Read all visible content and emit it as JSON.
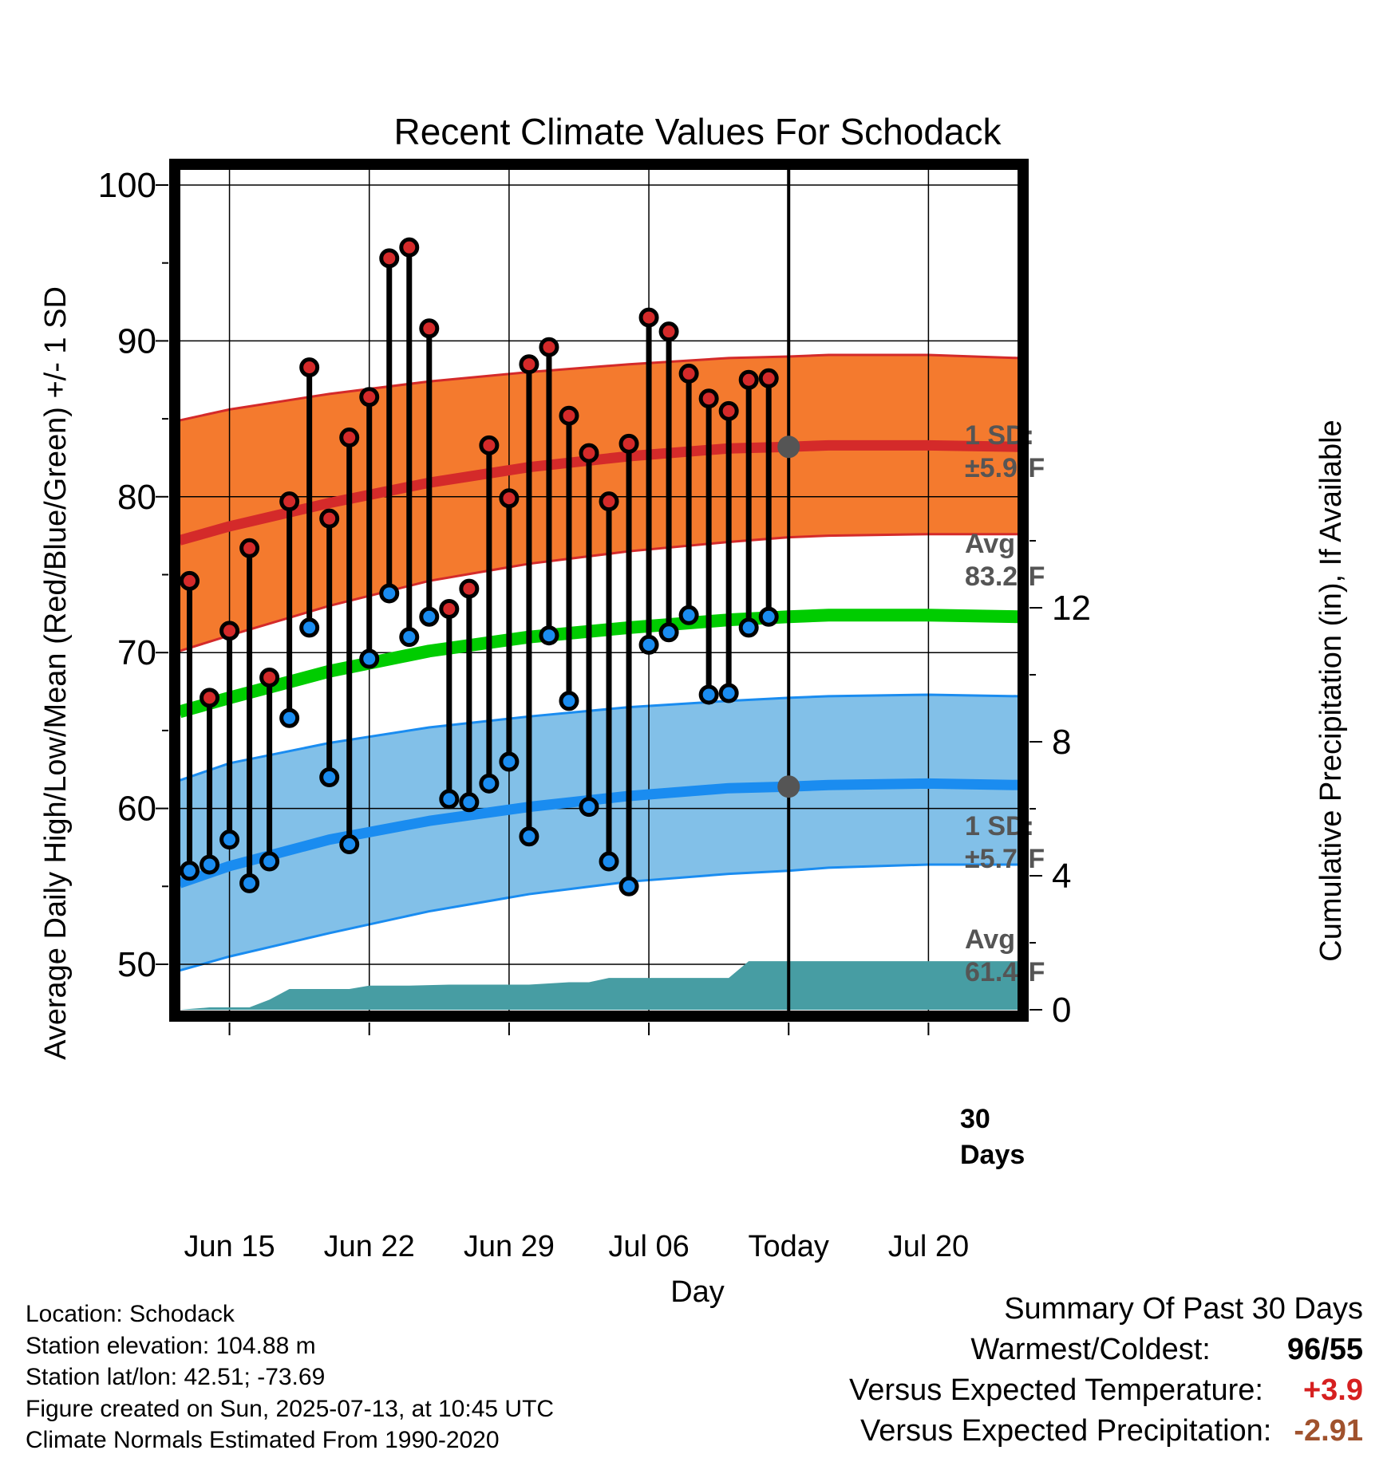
{
  "title": "Recent Climate Values For Schodack",
  "chart_data": {
    "type": "line",
    "title": "Recent Climate Values For Schodack",
    "xlabel": "Day",
    "ylabel": "Average Daily High/Low/Mean (Red/Blue/Green) +/- 1 SD",
    "ylabel_right": "Cumulative Precipitation (in), If Available",
    "ylim": [
      47,
      101
    ],
    "ylim_right": [
      0,
      36
    ],
    "x_range": [
      12.5,
      54.5
    ],
    "yticks": [
      50,
      60,
      70,
      80,
      90,
      100
    ],
    "yticks_right": [
      0,
      4,
      8,
      12
    ],
    "xticks": [
      {
        "day": 15,
        "label": "Jun 15"
      },
      {
        "day": 22,
        "label": "Jun 22"
      },
      {
        "day": 29,
        "label": "Jun 29"
      },
      {
        "day": 36,
        "label": "Jul 06"
      },
      {
        "day": 43,
        "label": "Today"
      },
      {
        "day": 50,
        "label": "Jul 20"
      }
    ],
    "today_day": 43,
    "days": [
      13,
      14,
      15,
      16,
      17,
      18,
      19,
      20,
      21,
      22,
      23,
      24,
      25,
      26,
      27,
      28,
      29,
      30,
      31,
      32,
      33,
      34,
      35,
      36,
      37,
      38,
      39,
      40,
      41,
      42
    ],
    "highs": [
      74.6,
      67.1,
      71.4,
      76.7,
      68.4,
      79.7,
      88.3,
      78.6,
      83.8,
      86.4,
      95.3,
      96.0,
      90.8,
      72.8,
      74.1,
      83.3,
      79.9,
      88.5,
      89.6,
      85.2,
      82.8,
      79.7,
      83.4,
      91.5,
      90.6,
      87.9,
      86.3,
      85.5,
      87.5,
      87.6
    ],
    "lows": [
      56.0,
      56.4,
      58.0,
      55.2,
      56.6,
      65.8,
      71.6,
      62.0,
      57.7,
      69.6,
      73.8,
      71.0,
      72.3,
      60.6,
      60.4,
      61.6,
      63.0,
      58.2,
      71.1,
      66.9,
      60.1,
      56.6,
      55.0,
      70.5,
      71.3,
      72.4,
      67.3,
      67.4,
      71.6,
      72.3
    ],
    "normal_high": {
      "x": [
        12.5,
        15,
        20,
        25,
        30,
        35,
        40,
        43,
        45,
        50,
        54.5
      ],
      "y": [
        77.2,
        78.1,
        79.6,
        80.9,
        81.9,
        82.6,
        83.1,
        83.2,
        83.3,
        83.3,
        83.2
      ]
    },
    "normal_high_sd": {
      "upper": [
        84.9,
        85.6,
        86.6,
        87.4,
        88.0,
        88.5,
        88.9,
        89.0,
        89.1,
        89.1,
        88.9
      ],
      "lower": [
        70.1,
        71.1,
        73.0,
        74.6,
        75.7,
        76.5,
        77.1,
        77.4,
        77.5,
        77.6,
        77.6
      ]
    },
    "normal_low": {
      "x": [
        12.5,
        15,
        20,
        25,
        30,
        35,
        40,
        43,
        45,
        50,
        54.5
      ],
      "y": [
        55.2,
        56.3,
        58.0,
        59.2,
        60.1,
        60.8,
        61.3,
        61.4,
        61.5,
        61.6,
        61.5
      ]
    },
    "normal_low_sd": {
      "upper": [
        61.8,
        62.9,
        64.2,
        65.2,
        65.9,
        66.5,
        66.9,
        67.1,
        67.2,
        67.3,
        67.2
      ],
      "lower": [
        49.6,
        50.5,
        52.0,
        53.4,
        54.5,
        55.3,
        55.8,
        56.0,
        56.2,
        56.4,
        56.4
      ]
    },
    "normal_mean": {
      "x": [
        12.5,
        15,
        20,
        25,
        30,
        35,
        40,
        43,
        45,
        50,
        54.5
      ],
      "y": [
        66.2,
        67.1,
        68.8,
        70.1,
        71.0,
        71.6,
        72.1,
        72.3,
        72.4,
        72.4,
        72.3
      ]
    },
    "precip": {
      "x": [
        12.5,
        14,
        15,
        16,
        17,
        18,
        19,
        21,
        22,
        24,
        26,
        28,
        30,
        32,
        33,
        34,
        36,
        40,
        41,
        42,
        54.5
      ],
      "y": [
        0.0,
        0.07,
        0.07,
        0.07,
        0.3,
        0.62,
        0.62,
        0.62,
        0.72,
        0.72,
        0.75,
        0.75,
        0.75,
        0.82,
        0.82,
        0.95,
        0.95,
        0.95,
        1.45,
        1.45,
        1.45
      ]
    },
    "annotations": {
      "high_sd": "1 SD:",
      "high_sd_value": "±5.9",
      "high_avg": "Avg:",
      "high_avg_value": "83.2",
      "low_sd": "1 SD:",
      "low_sd_value": "±5.7",
      "low_avg": "Avg:",
      "low_avg_value": "61.4",
      "degree": "o",
      "unit": "F",
      "days_count": "30",
      "days_label": "Days"
    },
    "colors": {
      "high": "#d42a2a",
      "high_band": "#f47a2e",
      "low": "#1a8cf0",
      "low_band": "#82c0e8",
      "mean": "#00cc00",
      "precip": "#479da3",
      "annotation": "#555555"
    }
  },
  "info": {
    "location": "Location: Schodack",
    "elevation": "Station elevation: 104.88 m",
    "latlon": "Station lat/lon: 42.51; -73.69",
    "created": "Figure created on Sun, 2025-07-13, at 10:45 UTC",
    "normals": "Climate Normals Estimated From 1990-2020"
  },
  "summary": {
    "title": "Summary Of Past 30 Days",
    "warm_label": "Warmest/Coldest:",
    "warm_value": "96",
    "cold_value": "55",
    "temp_label": "Versus Expected Temperature:",
    "temp_value": "+3.9",
    "temp_color": "#d62020",
    "precip_label": "Versus Expected Precipitation:",
    "precip_value": "-2.91",
    "precip_color": "#a0522d"
  }
}
